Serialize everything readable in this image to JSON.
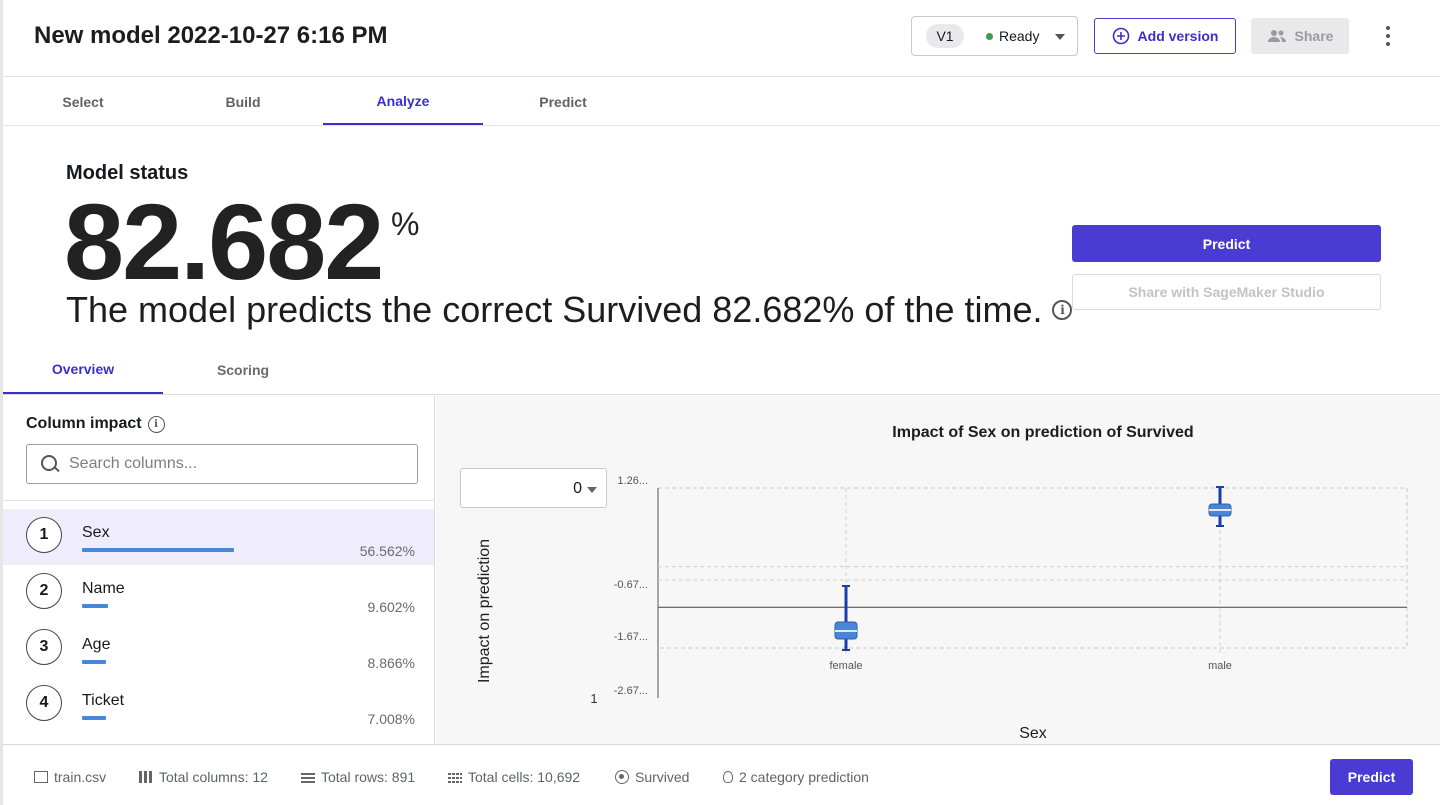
{
  "header": {
    "title": "New model 2022-10-27 6:16 PM",
    "version": "V1",
    "status": "Ready",
    "add_version": "Add version",
    "share": "Share"
  },
  "tabs": [
    "Select",
    "Build",
    "Analyze",
    "Predict"
  ],
  "active_tab": "Analyze",
  "model_status": {
    "label": "Model status",
    "value": "82.682",
    "unit": "%",
    "sentence": "The model predicts the correct Survived 82.682% of the time."
  },
  "actions": {
    "predict": "Predict",
    "share_studio": "Share with SageMaker Studio"
  },
  "subtabs": [
    "Overview",
    "Scoring"
  ],
  "column_impact": {
    "title": "Column impact",
    "search_placeholder": "Search columns...",
    "rows": [
      {
        "rank": "1",
        "name": "Sex",
        "pct": "56.562%",
        "value": 56.562
      },
      {
        "rank": "2",
        "name": "Name",
        "pct": "9.602%",
        "value": 9.602
      },
      {
        "rank": "3",
        "name": "Age",
        "pct": "8.866%",
        "value": 8.866
      },
      {
        "rank": "4",
        "name": "Ticket",
        "pct": "7.008%",
        "value": 7.008
      }
    ]
  },
  "chart": {
    "dropdown_value": "0",
    "stray_label": "1"
  },
  "chart_data": {
    "type": "box",
    "title": "Impact of Sex on prediction of Survived",
    "xlabel": "Sex",
    "ylabel": "Impact on prediction",
    "categories": [
      "female",
      "male"
    ],
    "ytick_labels": [
      "1.26...",
      "-0.67...",
      "-1.67...",
      "-2.67..."
    ],
    "ytick_values": [
      1.26,
      -0.67,
      -1.67,
      -2.67
    ],
    "ylim": [
      -2.67,
      1.26
    ],
    "zero_line": -1.67,
    "boxes": [
      {
        "category": "female",
        "min": -1.67,
        "q1": -1.56,
        "median": -1.51,
        "q3": -1.46,
        "max": -0.07
      },
      {
        "category": "male",
        "min": 0.31,
        "q1": 0.43,
        "median": 0.48,
        "q3": 0.54,
        "max": 1.31
      }
    ],
    "color": "#4a86d6"
  },
  "footer": {
    "file": "train.csv",
    "columns": "Total columns: 12",
    "rows": "Total rows: 891",
    "cells": "Total cells: 10,692",
    "target": "Survived",
    "prediction_type": "2 category prediction",
    "predict": "Predict"
  }
}
